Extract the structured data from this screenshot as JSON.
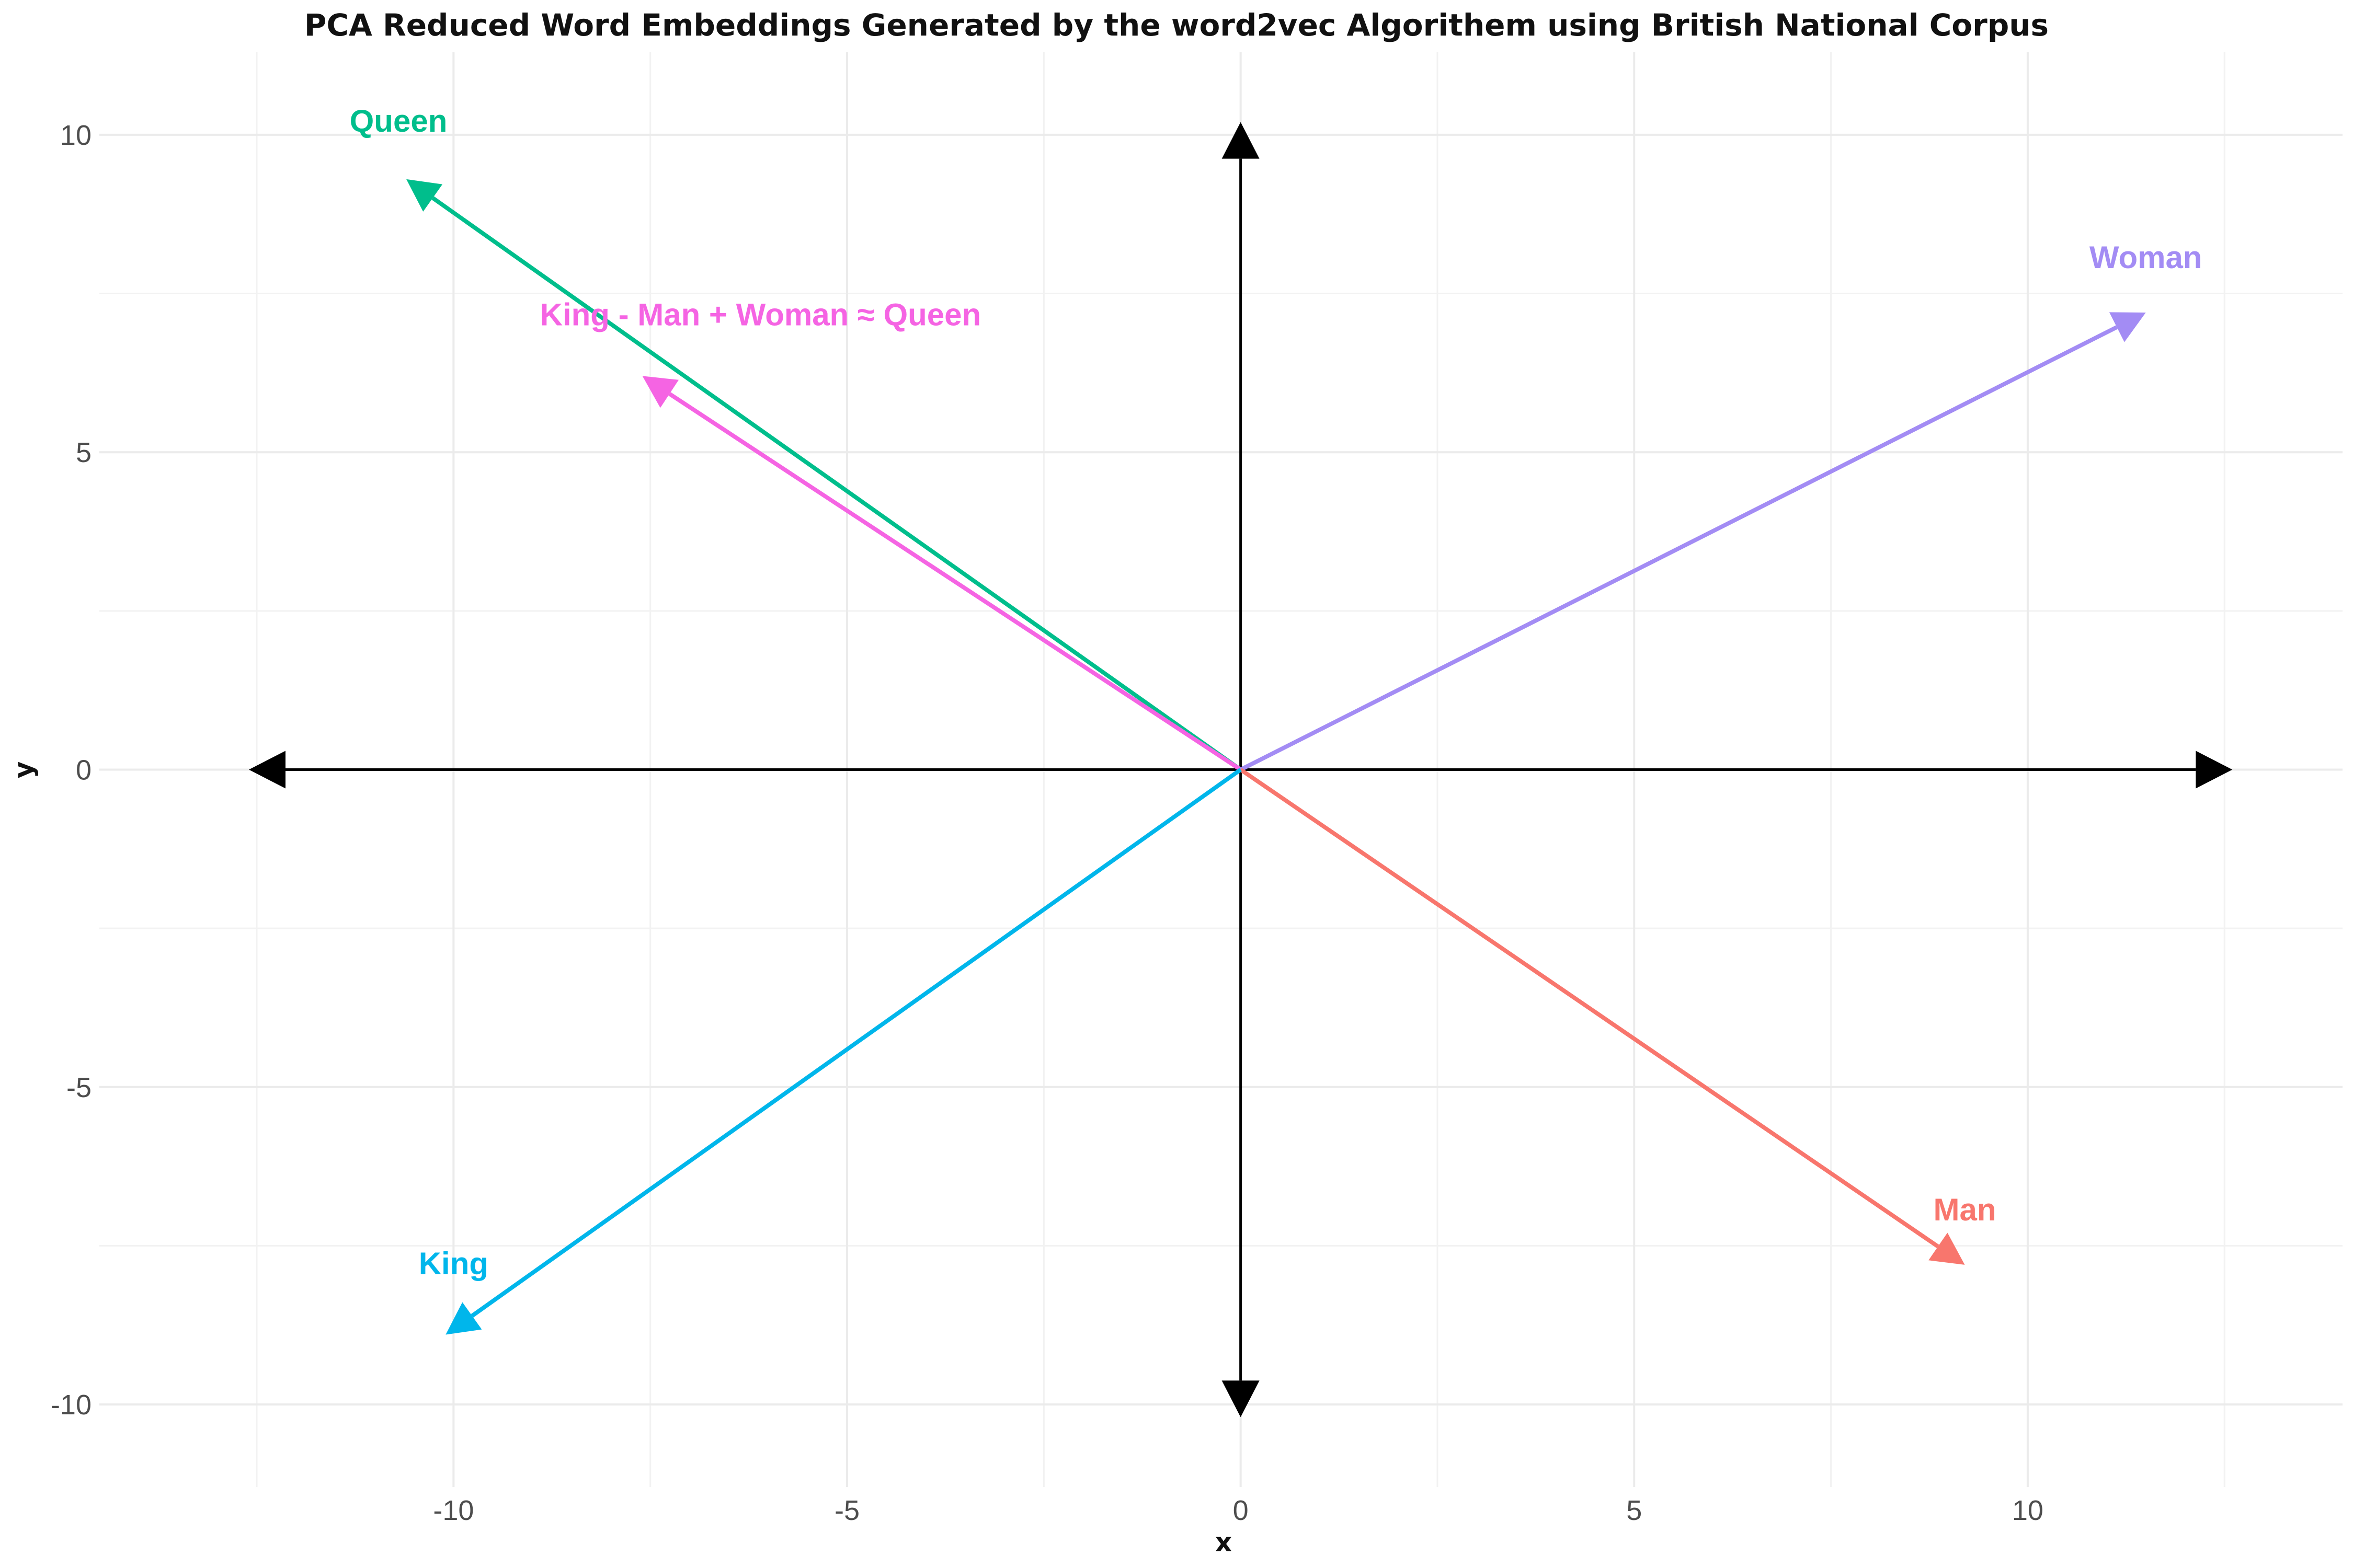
{
  "chart_data": {
    "type": "vector",
    "title": "PCA Reduced Word Embeddings Generated by the word2vec Algorithem using British National Corpus",
    "xlabel": "x",
    "ylabel": "y",
    "xlim": [
      -14.5,
      14.0
    ],
    "ylim": [
      -11.3,
      11.3
    ],
    "xticks": [
      -10,
      -5,
      0,
      5,
      10
    ],
    "xtick_labels": [
      "-10",
      "-5",
      "0",
      "5",
      "10"
    ],
    "yticks": [
      -10,
      -5,
      0,
      5,
      10
    ],
    "ytick_labels": [
      "-10",
      "-5",
      "0",
      "5",
      "10"
    ],
    "grid": true,
    "axes_arrows": [
      {
        "name": "x-axis-positive",
        "x": 12.6,
        "y": 0
      },
      {
        "name": "x-axis-negative",
        "x": -12.6,
        "y": 0
      },
      {
        "name": "y-axis-positive",
        "x": 0,
        "y": 10.2
      },
      {
        "name": "y-axis-negative",
        "x": 0,
        "y": -10.2
      }
    ],
    "vectors": [
      {
        "label": "Queen",
        "x": -10.6,
        "y": 9.3,
        "color": "#00BE8C",
        "label_x": -10.7,
        "label_y": 10.05
      },
      {
        "label": "King - Man + Woman ≈ Queen",
        "x": -7.6,
        "y": 6.2,
        "color": "#F564E3",
        "label_x": -6.1,
        "label_y": 7.0
      },
      {
        "label": "Woman",
        "x": 11.5,
        "y": 7.2,
        "color": "#A38CF4",
        "label_x": 11.5,
        "label_y": 7.9
      },
      {
        "label": "Man",
        "x": 9.2,
        "y": -7.8,
        "color": "#F8766D",
        "label_x": 9.2,
        "label_y": -7.1
      },
      {
        "label": "King",
        "x": -10.1,
        "y": -8.9,
        "color": "#00B6EB",
        "label_x": -10.0,
        "label_y": -7.95
      }
    ]
  }
}
